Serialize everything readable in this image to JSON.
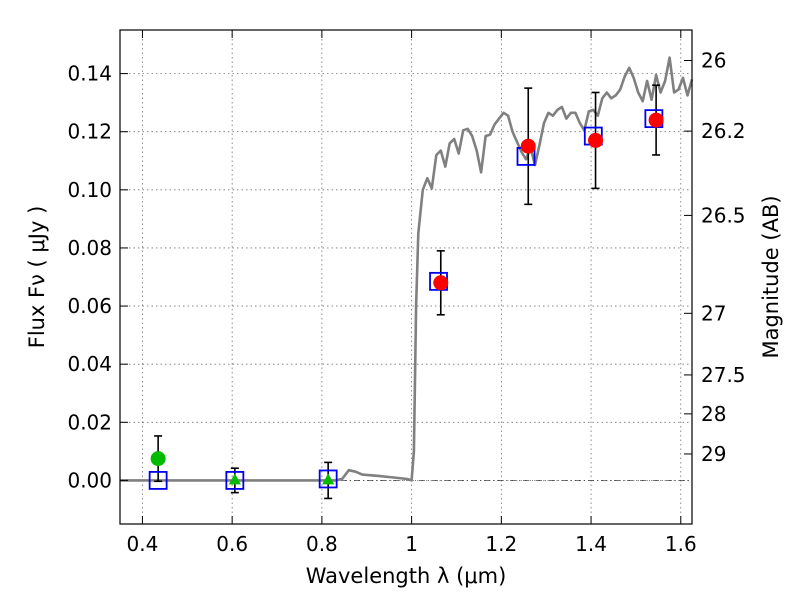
{
  "chart_data": {
    "type": "scatter",
    "xlabel": "Wavelength  λ (μm)",
    "ylabel": "Flux  Fν  ( μJy )",
    "y2label": "Magnitude (AB)",
    "xlim": [
      0.35,
      1.625
    ],
    "ylim": [
      -0.015,
      0.155
    ],
    "grid": true,
    "x_ticks": [
      0.4,
      0.6,
      0.8,
      1.0,
      1.2,
      1.4,
      1.6
    ],
    "x_tick_labels": [
      "0.4",
      "0.6",
      "0.8",
      "1",
      "1.2",
      "1.4",
      "1.6"
    ],
    "y_ticks": [
      0.0,
      0.02,
      0.04,
      0.06,
      0.08,
      0.1,
      0.12,
      0.14
    ],
    "y_tick_labels": [
      "0.00",
      "0.02",
      "0.04",
      "0.06",
      "0.08",
      "0.10",
      "0.12",
      "0.14"
    ],
    "mag_ticks": [
      {
        "flux": 0.1445,
        "label": "26"
      },
      {
        "flux": 0.1202,
        "label": "26.2"
      },
      {
        "flux": 0.0912,
        "label": "26.5"
      },
      {
        "flux": 0.0575,
        "label": "27"
      },
      {
        "flux": 0.0363,
        "label": "27.5"
      },
      {
        "flux": 0.0229,
        "label": "28"
      },
      {
        "flux": 0.0091,
        "label": "29"
      }
    ],
    "zero_line": 0,
    "colors": {
      "model": "#808080",
      "model_photometry": "#0000ee",
      "detections": "#ff0000",
      "upper_points_circle": "#00bb00",
      "upper_points_triangle": "#00bb00",
      "errorbars": "#000000"
    },
    "model_spectrum": [
      [
        0.35,
        0.0
      ],
      [
        0.83,
        0.0
      ],
      [
        0.845,
        0.0005
      ],
      [
        0.86,
        0.0035
      ],
      [
        0.875,
        0.003
      ],
      [
        0.89,
        0.002
      ],
      [
        0.93,
        0.0015
      ],
      [
        0.96,
        0.001
      ],
      [
        0.99,
        0.0005
      ],
      [
        1.0,
        0.0
      ],
      [
        1.005,
        0.01
      ],
      [
        1.01,
        0.06
      ],
      [
        1.015,
        0.085
      ],
      [
        1.025,
        0.1
      ],
      [
        1.035,
        0.104
      ],
      [
        1.045,
        0.1005
      ],
      [
        1.055,
        0.112
      ],
      [
        1.065,
        0.1135
      ],
      [
        1.075,
        0.108
      ],
      [
        1.085,
        0.116
      ],
      [
        1.095,
        0.1175
      ],
      [
        1.105,
        0.1125
      ],
      [
        1.115,
        0.1205
      ],
      [
        1.125,
        0.121
      ],
      [
        1.135,
        0.1185
      ],
      [
        1.145,
        0.1135
      ],
      [
        1.155,
        0.106
      ],
      [
        1.165,
        0.1185
      ],
      [
        1.175,
        0.119
      ],
      [
        1.185,
        0.1225
      ],
      [
        1.195,
        0.1245
      ],
      [
        1.205,
        0.1265
      ],
      [
        1.215,
        0.1255
      ],
      [
        1.225,
        0.12
      ],
      [
        1.235,
        0.1165
      ],
      [
        1.245,
        0.113
      ],
      [
        1.255,
        0.1105
      ],
      [
        1.265,
        0.1145
      ],
      [
        1.275,
        0.1085
      ],
      [
        1.285,
        0.1155
      ],
      [
        1.295,
        0.123
      ],
      [
        1.305,
        0.1265
      ],
      [
        1.315,
        0.1255
      ],
      [
        1.325,
        0.1275
      ],
      [
        1.335,
        0.1285
      ],
      [
        1.345,
        0.1245
      ],
      [
        1.355,
        0.1265
      ],
      [
        1.365,
        0.1265
      ],
      [
        1.375,
        0.123
      ],
      [
        1.385,
        0.1205
      ],
      [
        1.395,
        0.127
      ],
      [
        1.405,
        0.1275
      ],
      [
        1.415,
        0.1255
      ],
      [
        1.425,
        0.1315
      ],
      [
        1.435,
        0.1335
      ],
      [
        1.445,
        0.1315
      ],
      [
        1.455,
        0.1325
      ],
      [
        1.465,
        0.1345
      ],
      [
        1.475,
        0.139
      ],
      [
        1.485,
        0.142
      ],
      [
        1.495,
        0.1385
      ],
      [
        1.505,
        0.1335
      ],
      [
        1.515,
        0.1305
      ],
      [
        1.525,
        0.1375
      ],
      [
        1.535,
        0.131
      ],
      [
        1.545,
        0.1395
      ],
      [
        1.555,
        0.1335
      ],
      [
        1.565,
        0.1375
      ],
      [
        1.575,
        0.1455
      ],
      [
        1.585,
        0.1335
      ],
      [
        1.595,
        0.1345
      ],
      [
        1.605,
        0.1385
      ],
      [
        1.615,
        0.1325
      ],
      [
        1.625,
        0.138
      ]
    ],
    "model_photometry": [
      {
        "x": 0.435,
        "y": 0.0
      },
      {
        "x": 0.606,
        "y": 0.0
      },
      {
        "x": 0.814,
        "y": 0.0005
      },
      {
        "x": 1.06,
        "y": 0.0685
      },
      {
        "x": 1.255,
        "y": 0.1115
      },
      {
        "x": 1.405,
        "y": 0.1185
      },
      {
        "x": 1.54,
        "y": 0.1245
      }
    ],
    "detections": [
      {
        "x": 1.065,
        "y": 0.068,
        "err": 0.011
      },
      {
        "x": 1.26,
        "y": 0.115,
        "err": 0.02
      },
      {
        "x": 1.41,
        "y": 0.117,
        "err": 0.0165
      },
      {
        "x": 1.545,
        "y": 0.124,
        "err": 0.012
      }
    ],
    "green_circles": [
      {
        "x": 0.435,
        "y": 0.0075,
        "err": 0.0078
      }
    ],
    "green_triangles": [
      {
        "x": 0.606,
        "y": 0.0,
        "err": 0.0042
      },
      {
        "x": 0.814,
        "y": 0.0,
        "err": 0.0062
      }
    ]
  }
}
